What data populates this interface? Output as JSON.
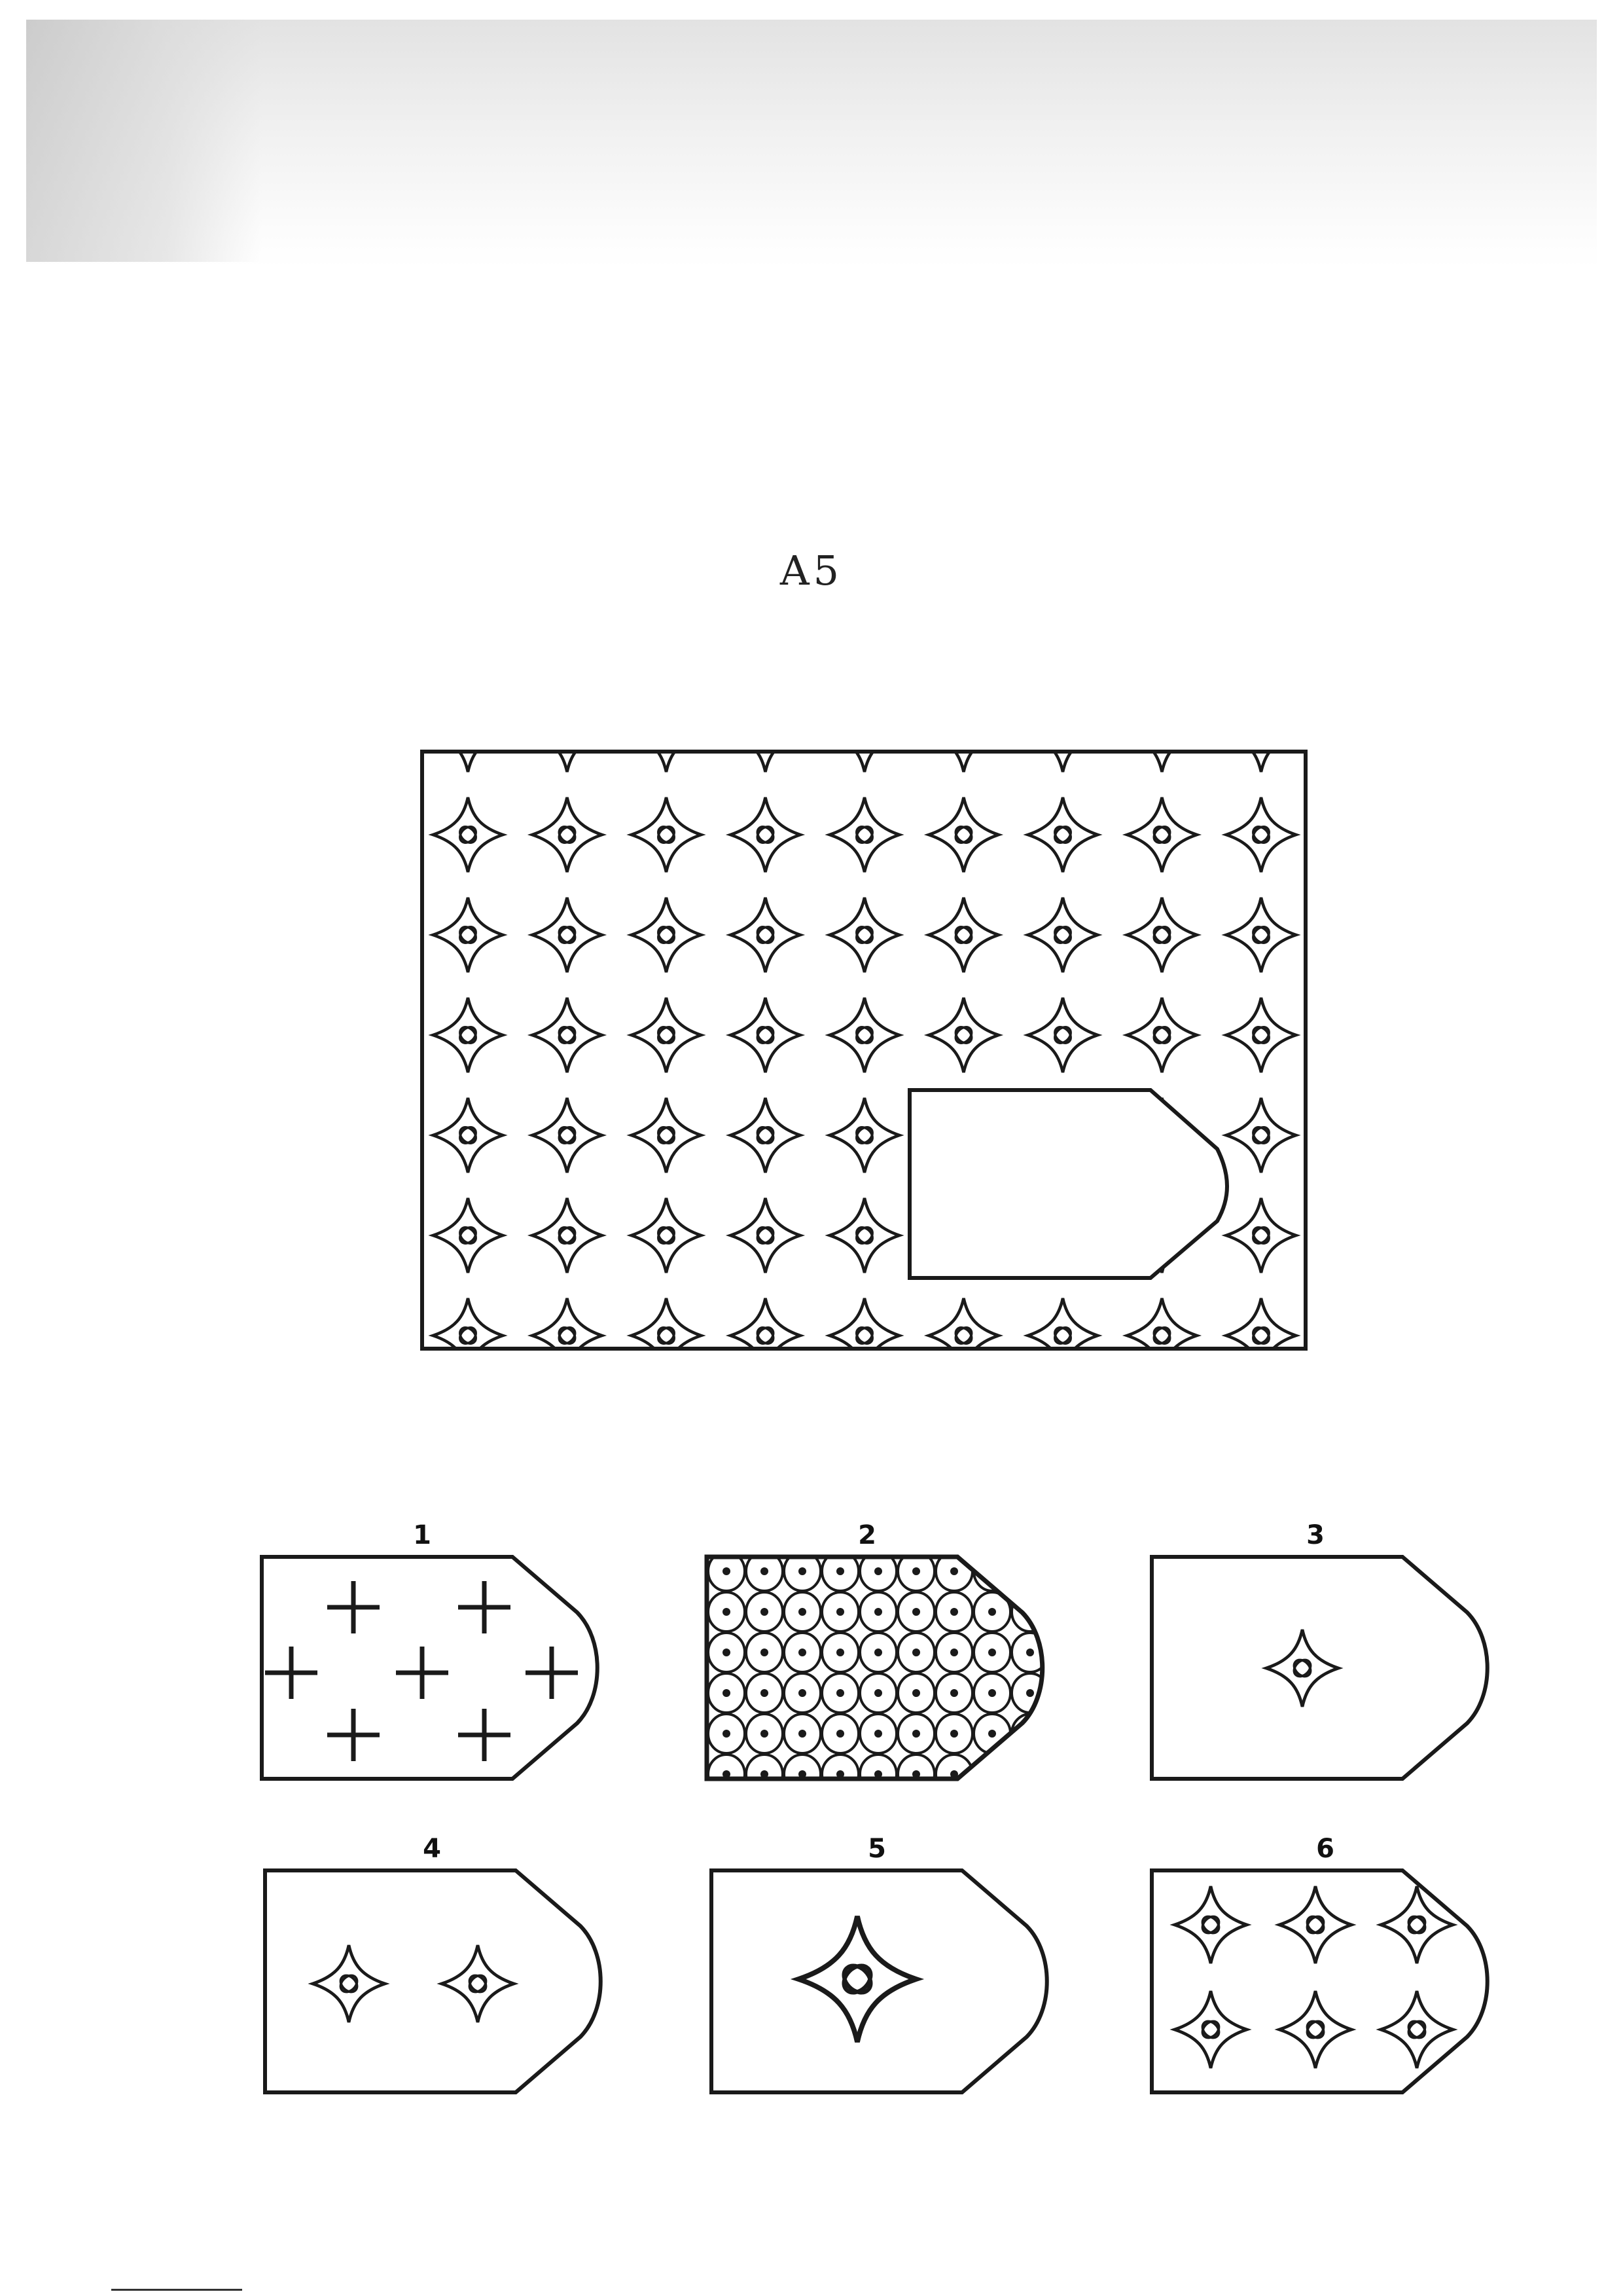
{
  "puzzle": {
    "title": "A5",
    "grid_cols": 9,
    "grid_rows": 6,
    "motif": "four-point-star-icon"
  },
  "options": [
    {
      "label": "1",
      "pattern": "plus-signs"
    },
    {
      "label": "2",
      "pattern": "dense-circle-lattice"
    },
    {
      "label": "3",
      "pattern": "single-small-star"
    },
    {
      "label": "4",
      "pattern": "two-small-stars"
    },
    {
      "label": "5",
      "pattern": "single-large-star"
    },
    {
      "label": "6",
      "pattern": "star-grid"
    }
  ],
  "colors": {
    "ink": "#1a1a1a",
    "paper": "#ffffff"
  }
}
